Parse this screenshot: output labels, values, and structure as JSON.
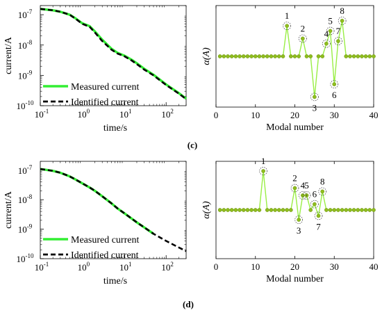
{
  "chart_data": [
    {
      "type": "line",
      "panel": "c-left",
      "ylabel": "current/A",
      "xlabel": "time/s",
      "xscale": "log",
      "yscale": "log",
      "xlim": [
        0.1,
        300
      ],
      "ylim": [
        1e-10,
        2e-07
      ],
      "x_ticks": [
        {
          "v": 0.1,
          "b": "10",
          "e": "-1"
        },
        {
          "v": 1,
          "b": "10",
          "e": "0"
        },
        {
          "v": 10,
          "b": "10",
          "e": "1"
        },
        {
          "v": 100,
          "b": "10",
          "e": "2"
        }
      ],
      "y_ticks": [
        {
          "v": 1e-10,
          "b": "10",
          "e": "-10"
        },
        {
          "v": 1e-09,
          "b": "10",
          "e": "-9"
        },
        {
          "v": 1e-08,
          "b": "10",
          "e": "-8"
        },
        {
          "v": 1e-07,
          "b": "10",
          "e": "-7"
        }
      ],
      "legend_position": "bottom-left",
      "series": [
        {
          "name": "Measured current",
          "color": "#33ee33",
          "dash": "solid",
          "x": [
            0.1,
            0.2,
            0.3,
            0.5,
            0.7,
            1.0,
            1.5,
            2.0,
            3.0,
            5.0,
            7.0,
            10,
            15,
            20,
            30,
            50,
            100,
            200,
            300
          ],
          "y": [
            1.55e-07,
            1.4e-07,
            1.25e-07,
            1e-07,
            7.5e-08,
            5.2e-08,
            4.2e-08,
            2.8e-08,
            1.5e-08,
            7.5e-09,
            5.5e-09,
            4.5e-09,
            3.3e-09,
            2.5e-09,
            1.65e-09,
            1.05e-09,
            5e-10,
            2.6e-10,
            1.7e-10
          ]
        },
        {
          "name": "Identified current",
          "color": "#000000",
          "dash": "dashed",
          "x": [
            0.1,
            0.2,
            0.3,
            0.5,
            0.7,
            1.0,
            1.5,
            2.0,
            3.0,
            5.0,
            7.0,
            10,
            15,
            20,
            30,
            50,
            100,
            200,
            300
          ],
          "y": [
            1.55e-07,
            1.4e-07,
            1.25e-07,
            1e-07,
            7.3e-08,
            5e-08,
            4e-08,
            2.6e-08,
            1.35e-08,
            7e-09,
            5.2e-09,
            4.3e-09,
            3.1e-09,
            2.35e-09,
            1.55e-09,
            1e-09,
            4.8e-10,
            2.5e-10,
            1.65e-10
          ]
        }
      ]
    },
    {
      "type": "line",
      "panel": "c-right",
      "ylabel": "α(A)",
      "xlabel": "Modal number",
      "xlim": [
        0,
        40
      ],
      "x_ticks": [
        0,
        10,
        20,
        30,
        40
      ],
      "ylim": [
        -1.0,
        1.0
      ],
      "marker_color": "#8fbc1f",
      "line_color": "#99ee44",
      "series": [
        {
          "x": [
            1,
            2,
            3,
            4,
            5,
            6,
            7,
            8,
            9,
            10,
            11,
            12,
            13,
            14,
            15,
            16,
            17,
            18,
            19,
            20,
            21,
            22,
            23,
            24,
            25,
            26,
            27,
            28,
            29,
            30,
            31,
            32,
            33,
            34,
            35,
            36,
            37,
            38,
            39,
            40
          ],
          "y": [
            0,
            0,
            0,
            0,
            0,
            0,
            0,
            0,
            0,
            0,
            0,
            0,
            0,
            0,
            0,
            0,
            0,
            0.6,
            0,
            0,
            0,
            0.35,
            0,
            0,
            -0.8,
            0,
            0,
            0.25,
            0.5,
            -0.55,
            0.3,
            0.7,
            0,
            0,
            0,
            0,
            0,
            0,
            0,
            0
          ]
        }
      ],
      "annotations": [
        {
          "label": "1",
          "x": 18,
          "y": 0.6
        },
        {
          "label": "2",
          "x": 22,
          "y": 0.35
        },
        {
          "label": "3",
          "x": 25,
          "y": -0.8
        },
        {
          "label": "4",
          "x": 28,
          "y": 0.25
        },
        {
          "label": "5",
          "x": 29,
          "y": 0.5
        },
        {
          "label": "6",
          "x": 30,
          "y": -0.55
        },
        {
          "label": "7",
          "x": 31,
          "y": 0.3
        },
        {
          "label": "8",
          "x": 32,
          "y": 0.7
        }
      ]
    },
    {
      "type": "line",
      "panel": "d-left",
      "ylabel": "current/A",
      "xlabel": "time/s",
      "xscale": "log",
      "yscale": "log",
      "xlim": [
        0.1,
        300
      ],
      "ylim": [
        1e-10,
        2e-07
      ],
      "x_ticks": [
        {
          "v": 0.1,
          "b": "10",
          "e": "-1"
        },
        {
          "v": 1,
          "b": "10",
          "e": "0"
        },
        {
          "v": 10,
          "b": "10",
          "e": "1"
        },
        {
          "v": 100,
          "b": "10",
          "e": "2"
        }
      ],
      "y_ticks": [
        {
          "v": 1e-10,
          "b": "10",
          "e": "-10"
        },
        {
          "v": 1e-09,
          "b": "10",
          "e": "-9"
        },
        {
          "v": 1e-08,
          "b": "10",
          "e": "-8"
        },
        {
          "v": 1e-07,
          "b": "10",
          "e": "-7"
        }
      ],
      "legend_position": "bottom-left",
      "series": [
        {
          "name": "Measured current",
          "color": "#33ee33",
          "dash": "solid",
          "x": [
            0.1,
            0.2,
            0.3,
            0.5,
            0.7,
            1.0,
            1.5,
            2.0,
            3.0,
            5.0,
            7.0,
            10,
            15,
            20,
            30,
            50
          ],
          "y": [
            1.1e-07,
            9.5e-08,
            8.2e-08,
            6.2e-08,
            4.8e-08,
            3.6e-08,
            2.6e-08,
            2e-08,
            1.3e-08,
            7.5e-09,
            5e-09,
            3.5e-09,
            2.3e-09,
            1.7e-09,
            1.15e-09,
            7e-10
          ]
        },
        {
          "name": "Identified current",
          "color": "#000000",
          "dash": "dashed",
          "x": [
            0.1,
            0.2,
            0.3,
            0.5,
            0.7,
            1.0,
            1.5,
            2.0,
            3.0,
            5.0,
            7.0,
            10,
            15,
            20,
            30,
            50,
            100,
            200,
            300
          ],
          "y": [
            1.1e-07,
            9.5e-08,
            8.2e-08,
            6.2e-08,
            4.8e-08,
            3.6e-08,
            2.6e-08,
            2e-08,
            1.3e-08,
            7.5e-09,
            5e-09,
            3.5e-09,
            2.3e-09,
            1.7e-09,
            1.15e-09,
            7e-10,
            4e-10,
            2.4e-10,
            1.8e-10
          ]
        }
      ]
    },
    {
      "type": "line",
      "panel": "d-right",
      "ylabel": "α(A)",
      "xlabel": "Modal number",
      "xlim": [
        0,
        40
      ],
      "x_ticks": [
        0,
        10,
        20,
        30,
        40
      ],
      "ylim": [
        -1.0,
        1.0
      ],
      "marker_color": "#8fbc1f",
      "line_color": "#99ee44",
      "series": [
        {
          "x": [
            1,
            2,
            3,
            4,
            5,
            6,
            7,
            8,
            9,
            10,
            11,
            12,
            13,
            14,
            15,
            16,
            17,
            18,
            19,
            20,
            21,
            22,
            23,
            24,
            25,
            26,
            27,
            28,
            29,
            30,
            31,
            32,
            33,
            34,
            35,
            36,
            37,
            38,
            39,
            40
          ],
          "y": [
            0,
            0,
            0,
            0,
            0,
            0,
            0,
            0,
            0,
            0,
            0,
            0.8,
            0,
            0,
            0,
            0,
            0,
            0,
            0,
            0.45,
            -0.2,
            0.3,
            0.3,
            0,
            0.12,
            -0.12,
            0.38,
            0,
            0,
            0,
            0,
            0,
            0,
            0,
            0,
            0,
            0,
            0,
            0,
            0
          ]
        }
      ],
      "annotations": [
        {
          "label": "1",
          "x": 12,
          "y": 0.8
        },
        {
          "label": "2",
          "x": 20,
          "y": 0.45
        },
        {
          "label": "3",
          "x": 21,
          "y": -0.2
        },
        {
          "label": "4",
          "x": 22,
          "y": 0.3
        },
        {
          "label": "5",
          "x": 23,
          "y": 0.3
        },
        {
          "label": "6",
          "x": 25,
          "y": 0.12
        },
        {
          "label": "7",
          "x": 26,
          "y": -0.12
        },
        {
          "label": "8",
          "x": 27,
          "y": 0.38
        }
      ]
    }
  ],
  "panel_labels": {
    "c": "(c)",
    "d": "(d)"
  }
}
